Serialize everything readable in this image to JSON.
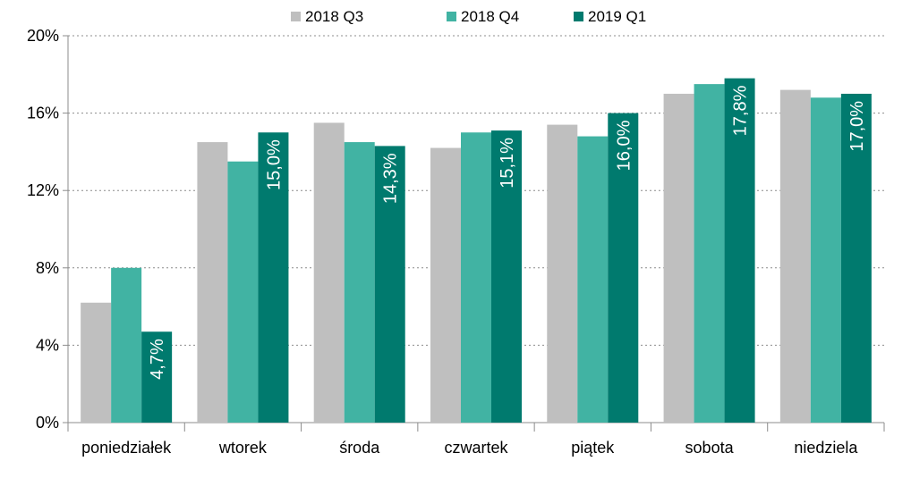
{
  "chart_data": {
    "type": "bar",
    "categories": [
      "poniedziałek",
      "wtorek",
      "środa",
      "czwartek",
      "piątek",
      "sobota",
      "niedziela"
    ],
    "series": [
      {
        "name": "2018 Q3",
        "color": "#bfbfbf",
        "values": [
          6.2,
          14.5,
          15.5,
          14.2,
          15.4,
          17.0,
          17.2
        ]
      },
      {
        "name": "2018 Q4",
        "color": "#41b3a3",
        "values": [
          8.0,
          13.5,
          14.5,
          15.0,
          14.8,
          17.5,
          16.8
        ]
      },
      {
        "name": "2019 Q1",
        "color": "#007a6e",
        "values": [
          4.7,
          15.0,
          14.3,
          15.1,
          16.0,
          17.8,
          17.0
        ]
      }
    ],
    "data_labels": {
      "series_index": 2,
      "values": [
        "4,7%",
        "15,0%",
        "14,3%",
        "15,1%",
        "16,0%",
        "17,8%",
        "17,0%"
      ]
    },
    "y_ticks": [
      {
        "value": 0,
        "label": "0%"
      },
      {
        "value": 4,
        "label": "4%"
      },
      {
        "value": 8,
        "label": "8%"
      },
      {
        "value": 12,
        "label": "12%"
      },
      {
        "value": 16,
        "label": "16%"
      },
      {
        "value": 20,
        "label": "20%"
      }
    ],
    "ylim": [
      0,
      20
    ],
    "grid": "dotted horizontal",
    "legend_position": "top-center",
    "title": "",
    "xlabel": "",
    "ylabel": ""
  }
}
